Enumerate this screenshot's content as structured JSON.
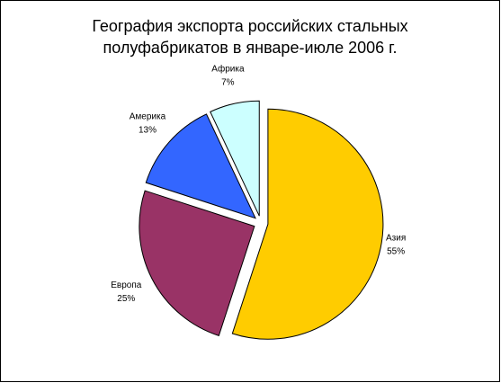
{
  "chart_data": {
    "type": "pie",
    "title": [
      "География экспорта российских стальных",
      "полуфабрикатов в январе-июле 2006 г."
    ],
    "categories": [
      "Азия",
      "Европа",
      "Америка",
      "Африка"
    ],
    "values": [
      55,
      25,
      13,
      7
    ],
    "value_labels": [
      "55%",
      "25%",
      "13%",
      "7%"
    ],
    "colors": [
      "#FFCC00",
      "#993366",
      "#3366FF",
      "#CCFFFF"
    ]
  }
}
